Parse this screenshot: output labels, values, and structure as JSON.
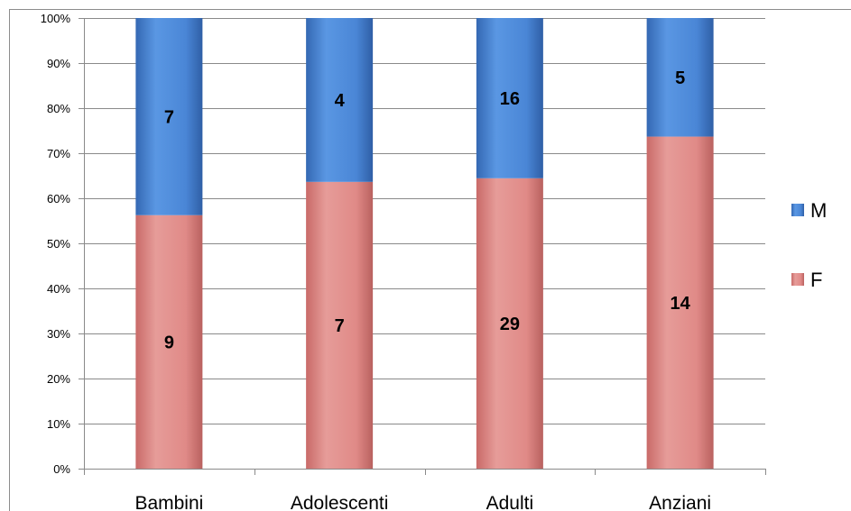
{
  "chart_data": {
    "type": "bar",
    "stacked": "percent",
    "categories": [
      "Bambini",
      "Adolescenti",
      "Adulti",
      "Anziani"
    ],
    "series": [
      {
        "name": "F",
        "values": [
          9,
          7,
          29,
          14
        ],
        "color": "#e08a87"
      },
      {
        "name": "M",
        "values": [
          7,
          4,
          16,
          5
        ],
        "color": "#4a86d6"
      }
    ],
    "y_ticks": [
      "0%",
      "10%",
      "20%",
      "30%",
      "40%",
      "50%",
      "60%",
      "70%",
      "80%",
      "90%",
      "100%"
    ],
    "ylim": [
      0,
      100
    ],
    "grid": true,
    "legend": "right",
    "legend_order": [
      "M",
      "F"
    ],
    "title": "",
    "xlabel": "",
    "ylabel": ""
  }
}
